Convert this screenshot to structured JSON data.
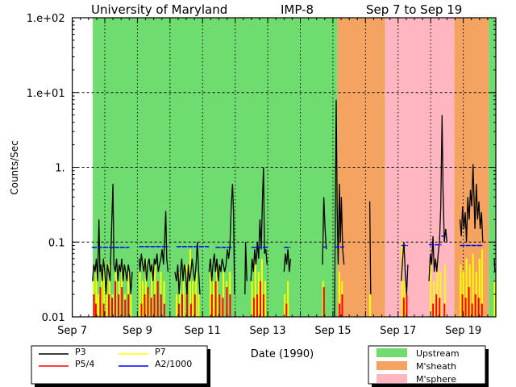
{
  "chart_data": {
    "type": "line",
    "title": {
      "left": "University of Maryland",
      "center": "IMP-8",
      "right": "Sep 7 to Sep 19"
    },
    "xlabel": "Date (1990)",
    "ylabel": "Counts/Sec",
    "xlim": [
      7,
      20
    ],
    "ylim": [
      0.01,
      100
    ],
    "yscale": "log",
    "x_ticks": [
      {
        "v": 7,
        "label": "Sep 7"
      },
      {
        "v": 9,
        "label": "Sep 9"
      },
      {
        "v": 11,
        "label": "Sep 11"
      },
      {
        "v": 13,
        "label": "Sep 13"
      },
      {
        "v": 15,
        "label": "Sep 15"
      },
      {
        "v": 17,
        "label": "Sep 17"
      },
      {
        "v": 19,
        "label": "Sep 19"
      }
    ],
    "y_ticks": [
      {
        "v": 100,
        "label": "1.e+02"
      },
      {
        "v": 10,
        "label": "1.e+01"
      },
      {
        "v": 1,
        "label": "1."
      },
      {
        "v": 0.1,
        "label": "0.1"
      },
      {
        "v": 0.01,
        "label": "0.01"
      }
    ],
    "grid": true,
    "regions": [
      {
        "name": "Upstream",
        "start": 7.63,
        "end": 15.14
      },
      {
        "name": "M'sheath",
        "start": 15.14,
        "end": 16.6
      },
      {
        "name": "M'sphere",
        "start": 16.6,
        "end": 18.72
      },
      {
        "name": "M'sheath",
        "start": 18.72,
        "end": 19.78
      },
      {
        "name": "Upstream",
        "start": 19.78,
        "end": 20
      }
    ],
    "region_legend": [
      {
        "label": "Upstream",
        "color": "#6EDC6E"
      },
      {
        "label": "M'sheath",
        "color": "#F4A460"
      },
      {
        "label": "M'sphere",
        "color": "#FFB6C1"
      }
    ],
    "series_legend": [
      {
        "key": "P3",
        "label": "P3",
        "color": "#000000"
      },
      {
        "key": "P7",
        "label": "P7",
        "color": "#FFFF00"
      },
      {
        "key": "P54",
        "label": "P5/4",
        "color": "#FF0000"
      },
      {
        "key": "A2",
        "label": "A2/1000",
        "color": "#0000FF"
      }
    ],
    "series": {
      "P3": [
        [
          7.62,
          0.03
        ],
        [
          7.66,
          0.05
        ],
        [
          7.7,
          0.04
        ],
        [
          7.74,
          0.06
        ],
        [
          7.78,
          0.03
        ],
        [
          7.82,
          0.2
        ],
        [
          7.85,
          0.04
        ],
        [
          7.88,
          0.05
        ],
        [
          7.92,
          0.03
        ],
        [
          7.96,
          0.06
        ],
        [
          8.0,
          0.04
        ],
        [
          8.04,
          0.02
        ],
        [
          8.08,
          0.05
        ],
        [
          8.12,
          0.04
        ],
        [
          8.16,
          0.03
        ],
        [
          8.2,
          0.12
        ],
        [
          8.25,
          0.6
        ],
        [
          8.28,
          0.05
        ],
        [
          8.32,
          0.04
        ],
        [
          8.36,
          0.06
        ],
        [
          8.4,
          0.03
        ],
        [
          8.44,
          0.05
        ],
        [
          8.48,
          0.04
        ],
        [
          8.52,
          0.06
        ],
        [
          8.56,
          0.03
        ],
        [
          8.6,
          0.05
        ],
        [
          8.64,
          0.04
        ],
        [
          8.68,
          0.03
        ],
        [
          8.72,
          0.05
        ],
        [
          8.76,
          0.04
        ],
        [
          8.8,
          0.02
        ],
        [
          8.84,
          0.04
        ],
        null,
        [
          9.05,
          0.06
        ],
        [
          9.08,
          0.04
        ],
        [
          9.12,
          0.07
        ],
        [
          9.16,
          0.05
        ],
        [
          9.2,
          0.04
        ],
        [
          9.24,
          0.06
        ],
        [
          9.28,
          0.03
        ],
        [
          9.32,
          0.05
        ],
        [
          9.36,
          0.06
        ],
        [
          9.4,
          0.04
        ],
        [
          9.44,
          0.05
        ],
        [
          9.48,
          0.03
        ],
        [
          9.52,
          0.06
        ],
        [
          9.56,
          0.05
        ],
        [
          9.6,
          0.07
        ],
        [
          9.64,
          0.04
        ],
        [
          9.68,
          0.05
        ],
        [
          9.72,
          0.06
        ],
        [
          9.76,
          0.08
        ],
        [
          9.8,
          0.05
        ],
        [
          9.84,
          0.12
        ],
        [
          9.87,
          0.26
        ],
        [
          9.9,
          0.06
        ],
        [
          9.94,
          0.04
        ],
        null,
        [
          10.15,
          0.04
        ],
        [
          10.2,
          0.03
        ],
        [
          10.24,
          0.05
        ],
        [
          10.28,
          0.02
        ],
        [
          10.32,
          0.04
        ],
        [
          10.36,
          0.06
        ],
        [
          10.4,
          0.03
        ],
        [
          10.44,
          0.05
        ],
        [
          10.48,
          0.04
        ],
        [
          10.52,
          0.02
        ],
        [
          10.56,
          0.05
        ],
        [
          10.6,
          0.03
        ],
        [
          10.64,
          0.04
        ],
        [
          10.68,
          0.06
        ],
        [
          10.72,
          0.04
        ],
        [
          10.76,
          0.03
        ],
        [
          10.8,
          0.05
        ],
        [
          10.84,
          0.1
        ],
        [
          10.88,
          0.04
        ],
        [
          10.92,
          0.02
        ],
        null,
        [
          11.2,
          0.04
        ],
        [
          11.24,
          0.06
        ],
        [
          11.28,
          0.03
        ],
        [
          11.32,
          0.05
        ],
        [
          11.36,
          0.07
        ],
        [
          11.4,
          0.04
        ],
        [
          11.44,
          0.06
        ],
        [
          11.48,
          0.03
        ],
        [
          11.52,
          0.05
        ],
        [
          11.56,
          0.04
        ],
        [
          11.6,
          0.06
        ],
        [
          11.64,
          0.05
        ],
        [
          11.68,
          0.04
        ],
        [
          11.72,
          0.05
        ],
        [
          11.76,
          0.08
        ],
        [
          11.8,
          0.06
        ],
        [
          11.84,
          0.09
        ],
        [
          11.88,
          0.3
        ],
        [
          11.92,
          0.6
        ],
        [
          11.95,
          0.25
        ],
        [
          11.98,
          0.02
        ],
        null,
        [
          12.3,
          0.02
        ],
        [
          12.32,
          0.1
        ],
        [
          12.36,
          0.03
        ],
        null,
        [
          12.48,
          0.03
        ],
        [
          12.52,
          0.06
        ],
        [
          12.56,
          0.04
        ],
        [
          12.6,
          0.08
        ],
        [
          12.64,
          0.05
        ],
        [
          12.68,
          0.1
        ],
        [
          12.72,
          0.06
        ],
        [
          12.76,
          0.2
        ],
        [
          12.8,
          0.08
        ],
        [
          12.84,
          0.4
        ],
        [
          12.87,
          1.0
        ],
        [
          12.9,
          0.07
        ],
        [
          12.94,
          0.08
        ],
        [
          12.98,
          0.05
        ],
        null,
        [
          13.5,
          0.04
        ],
        [
          13.54,
          0.07
        ],
        [
          13.58,
          0.05
        ],
        [
          13.62,
          0.08
        ],
        [
          13.66,
          0.04
        ],
        [
          13.7,
          0.06
        ],
        null,
        [
          14.68,
          0.05
        ],
        [
          14.72,
          0.4
        ],
        [
          14.76,
          0.15
        ],
        [
          14.8,
          0.08
        ],
        null,
        [
          15.05,
          0.01
        ],
        [
          15.1,
          8.0
        ],
        [
          15.13,
          0.3
        ],
        [
          15.16,
          0.05
        ],
        [
          15.2,
          0.6
        ],
        [
          15.23,
          0.1
        ],
        [
          15.26,
          0.4
        ],
        [
          15.3,
          0.08
        ],
        [
          15.34,
          0.05
        ],
        null,
        [
          16.13,
          0.35
        ],
        [
          16.16,
          0.02
        ],
        null,
        [
          17.1,
          0.03
        ],
        [
          17.14,
          0.06
        ],
        [
          17.18,
          0.1
        ],
        [
          17.22,
          0.04
        ],
        [
          17.26,
          0.02
        ],
        [
          17.3,
          0.05
        ],
        null,
        [
          17.95,
          0.03
        ],
        [
          17.99,
          0.07
        ],
        [
          18.03,
          0.05
        ],
        [
          18.07,
          0.12
        ],
        [
          18.11,
          0.04
        ],
        [
          18.15,
          0.06
        ],
        [
          18.19,
          0.04
        ],
        [
          18.23,
          0.07
        ],
        [
          18.27,
          0.1
        ],
        [
          18.31,
          0.3
        ],
        [
          18.35,
          5.0
        ],
        [
          18.38,
          0.5
        ],
        [
          18.42,
          0.1
        ],
        [
          18.46,
          0.15
        ],
        [
          18.5,
          0.1
        ],
        null,
        [
          18.9,
          0.2
        ],
        [
          18.94,
          0.12
        ],
        [
          18.98,
          0.3
        ],
        [
          19.02,
          0.15
        ],
        [
          19.06,
          0.25
        ],
        [
          19.1,
          0.1
        ],
        [
          19.14,
          0.4
        ],
        [
          19.18,
          0.2
        ],
        [
          19.22,
          0.5
        ],
        [
          19.26,
          0.3
        ],
        [
          19.3,
          1.1
        ],
        [
          19.33,
          0.4
        ],
        [
          19.36,
          0.15
        ],
        [
          19.4,
          0.6
        ],
        [
          19.44,
          0.2
        ],
        [
          19.48,
          0.35
        ],
        [
          19.52,
          0.15
        ],
        [
          19.56,
          0.25
        ],
        [
          19.6,
          0.1
        ],
        null,
        [
          19.95,
          0.06
        ],
        [
          19.97,
          0.04
        ]
      ],
      "P7": [
        [
          7.66,
          0.03
        ],
        [
          7.74,
          0.05
        ],
        [
          7.8,
          0.02
        ],
        [
          7.9,
          0.04
        ],
        [
          7.98,
          0.06
        ],
        [
          8.06,
          0.03
        ],
        [
          8.14,
          0.05
        ],
        [
          8.24,
          0.02
        ],
        [
          8.34,
          0.04
        ],
        [
          8.44,
          0.03
        ],
        [
          8.52,
          0.05
        ],
        [
          8.62,
          0.02
        ],
        [
          8.72,
          0.04
        ],
        [
          8.8,
          0.03
        ],
        [
          9.08,
          0.05
        ],
        [
          9.16,
          0.03
        ],
        [
          9.26,
          0.06
        ],
        [
          9.34,
          0.02
        ],
        [
          9.44,
          0.04
        ],
        [
          9.54,
          0.05
        ],
        [
          9.62,
          0.03
        ],
        [
          9.72,
          0.04
        ],
        [
          9.82,
          0.03
        ],
        [
          10.2,
          0.02
        ],
        [
          10.3,
          0.04
        ],
        [
          10.42,
          0.03
        ],
        [
          10.52,
          0.05
        ],
        [
          10.62,
          0.08
        ],
        [
          10.7,
          0.03
        ],
        [
          10.8,
          0.04
        ],
        [
          10.88,
          0.02
        ],
        [
          11.24,
          0.04
        ],
        [
          11.34,
          0.03
        ],
        [
          11.44,
          0.05
        ],
        [
          11.54,
          0.02
        ],
        [
          11.64,
          0.04
        ],
        [
          11.74,
          0.03
        ],
        [
          11.84,
          0.04
        ],
        [
          12.52,
          0.03
        ],
        [
          12.62,
          0.05
        ],
        [
          12.72,
          0.04
        ],
        [
          12.82,
          0.06
        ],
        [
          12.92,
          0.03
        ],
        [
          13.52,
          0.02
        ],
        [
          13.62,
          0.03
        ],
        [
          14.7,
          0.03
        ],
        [
          15.2,
          0.04
        ],
        [
          15.28,
          0.03
        ],
        [
          16.14,
          0.02
        ],
        [
          17.12,
          0.1
        ],
        [
          17.2,
          0.03
        ],
        [
          17.26,
          0.02
        ],
        [
          18.0,
          0.05
        ],
        [
          18.1,
          0.03
        ],
        [
          18.2,
          0.06
        ],
        [
          18.3,
          0.04
        ],
        [
          18.44,
          0.05
        ],
        [
          18.92,
          0.05
        ],
        [
          19.0,
          0.04
        ],
        [
          19.1,
          0.06
        ],
        [
          19.2,
          0.05
        ],
        [
          19.3,
          0.07
        ],
        [
          19.4,
          0.04
        ],
        [
          19.5,
          0.06
        ],
        [
          19.58,
          0.08
        ],
        [
          19.96,
          0.03
        ]
      ],
      "P54": [
        [
          7.64,
          0.02
        ],
        [
          7.7,
          0.015
        ],
        [
          7.84,
          0.025
        ],
        [
          7.94,
          0.015
        ],
        [
          8.1,
          0.02
        ],
        [
          8.2,
          0.018
        ],
        [
          8.3,
          0.03
        ],
        [
          8.4,
          0.02
        ],
        [
          8.5,
          0.025
        ],
        [
          8.6,
          0.017
        ],
        [
          8.7,
          0.02
        ],
        [
          9.1,
          0.015
        ],
        [
          9.2,
          0.02
        ],
        [
          9.3,
          0.025
        ],
        [
          9.4,
          0.018
        ],
        [
          9.5,
          0.02
        ],
        [
          9.6,
          0.03
        ],
        [
          9.7,
          0.02
        ],
        [
          9.8,
          0.015
        ],
        [
          10.25,
          0.015
        ],
        [
          10.35,
          0.02
        ],
        [
          10.5,
          0.025
        ],
        [
          10.62,
          0.015
        ],
        [
          10.74,
          0.02
        ],
        [
          11.26,
          0.02
        ],
        [
          11.38,
          0.03
        ],
        [
          11.5,
          0.02
        ],
        [
          11.6,
          0.018
        ],
        [
          11.72,
          0.025
        ],
        [
          11.82,
          0.02
        ],
        [
          12.55,
          0.018
        ],
        [
          12.65,
          0.02
        ],
        [
          12.75,
          0.03
        ],
        [
          12.85,
          0.02
        ],
        [
          13.55,
          0.015
        ],
        [
          14.7,
          0.025
        ],
        [
          15.18,
          0.015
        ],
        [
          15.26,
          0.02
        ],
        [
          17.15,
          0.018
        ],
        [
          17.24,
          0.02
        ],
        [
          18.05,
          0.015
        ],
        [
          18.15,
          0.02
        ],
        [
          18.25,
          0.018
        ],
        [
          18.4,
          0.015
        ],
        [
          18.95,
          0.02
        ],
        [
          19.05,
          0.018
        ],
        [
          19.15,
          0.025
        ],
        [
          19.25,
          0.015
        ],
        [
          19.35,
          0.02
        ],
        [
          19.45,
          0.018
        ],
        [
          19.55,
          0.015
        ]
      ],
      "A2": [
        [
          7.6,
          8.75,
          0.085
        ],
        [
          9.05,
          9.95,
          0.087
        ],
        [
          10.2,
          11.2,
          0.087
        ],
        [
          11.4,
          11.9,
          0.085
        ],
        [
          12.5,
          13.0,
          0.085
        ],
        [
          13.5,
          13.7,
          0.085
        ],
        [
          14.7,
          14.8,
          0.086
        ],
        [
          15.05,
          15.35,
          0.086
        ],
        [
          17.1,
          17.3,
          0.09
        ],
        [
          17.95,
          18.33,
          0.092
        ],
        [
          18.33,
          18.42,
          0.12
        ],
        [
          18.9,
          19.6,
          0.09
        ],
        [
          19.95,
          20.0,
          0.09
        ]
      ]
    }
  }
}
